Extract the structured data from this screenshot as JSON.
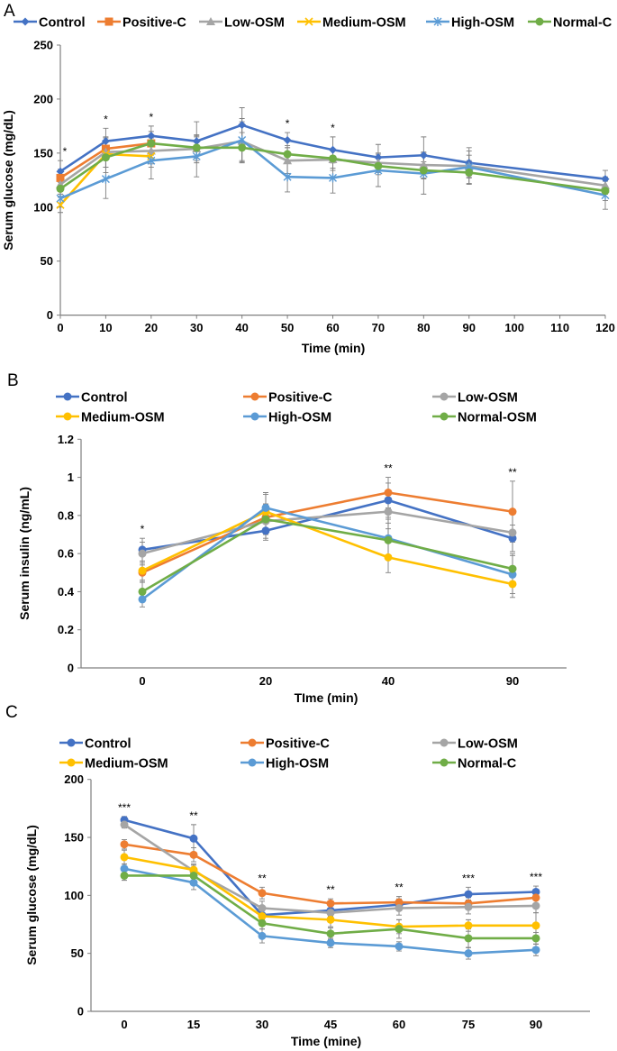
{
  "colors": {
    "Control": "#4472C4",
    "Positive-C": "#ED7D31",
    "Low-OSM": "#A5A5A5",
    "Medium-OSM": "#FFC000",
    "High-OSM": "#5B9BD5",
    "Normal-C": "#70AD47",
    "Normal-OSM": "#70AD47",
    "error": "#7F7F7F",
    "axis": "#7F7F7F"
  },
  "chart_data": [
    {
      "panel_label": "A",
      "type": "line",
      "xlabel": "Time (min)",
      "ylabel": "Serum glucose (mg/dL)",
      "xlim": [
        0,
        120
      ],
      "ylim": [
        0,
        250
      ],
      "xticks": [
        0,
        10,
        20,
        30,
        40,
        50,
        60,
        70,
        80,
        90,
        100,
        110,
        120
      ],
      "yticks": [
        0,
        50,
        100,
        150,
        200,
        250
      ],
      "grid": false,
      "legend": "top",
      "significance": [
        {
          "x": 0,
          "label": "*"
        },
        {
          "x": 10,
          "label": "*"
        },
        {
          "x": 20,
          "label": "*"
        },
        {
          "x": 50,
          "label": "*"
        },
        {
          "x": 60,
          "label": "*"
        }
      ],
      "series": [
        {
          "name": "Control",
          "marker": "diamond",
          "x": [
            0,
            10,
            20,
            30,
            40,
            50,
            60,
            70,
            80,
            90,
            120
          ],
          "values": [
            133,
            161,
            166,
            161,
            176,
            162,
            153,
            146,
            148,
            141,
            126
          ],
          "err": [
            10,
            12,
            9,
            18,
            16,
            7,
            12,
            12,
            17,
            14,
            8
          ]
        },
        {
          "name": "Positive-C",
          "marker": "square",
          "x": [
            0,
            10,
            20
          ],
          "values": [
            127,
            154,
            159
          ],
          "err": [
            8,
            10,
            8
          ]
        },
        {
          "name": "Low-OSM",
          "marker": "triangle",
          "x": [
            0,
            10,
            20,
            30,
            40,
            50,
            60,
            70,
            80,
            90,
            120
          ],
          "values": [
            121,
            151,
            152,
            154,
            161,
            143,
            144,
            141,
            139,
            138,
            120
          ],
          "err": [
            9,
            14,
            12,
            13,
            18,
            12,
            10,
            9,
            12,
            10,
            8
          ]
        },
        {
          "name": "Medium-OSM",
          "marker": "x",
          "x": [
            0,
            10,
            20
          ],
          "values": [
            102,
            149,
            147
          ],
          "err": [
            7,
            12,
            10
          ]
        },
        {
          "name": "High-OSM",
          "marker": "asterisk",
          "x": [
            0,
            10,
            20,
            30,
            40,
            50,
            60,
            70,
            80,
            90,
            120
          ],
          "values": [
            108,
            126,
            143,
            147,
            162,
            128,
            127,
            134,
            131,
            137,
            111
          ],
          "err": [
            8,
            18,
            17,
            19,
            20,
            14,
            14,
            15,
            19,
            15,
            13
          ]
        },
        {
          "name": "Normal-C",
          "marker": "circle",
          "x": [
            0,
            10,
            20,
            30,
            40,
            50,
            60,
            70,
            80,
            90,
            120
          ],
          "values": [
            117,
            146,
            159,
            155,
            155,
            149,
            145,
            138,
            134,
            132,
            115
          ],
          "err": [
            7,
            14,
            11,
            10,
            14,
            8,
            9,
            8,
            8,
            11,
            9
          ]
        }
      ]
    },
    {
      "panel_label": "B",
      "type": "line",
      "xlabel": "TIme (min)",
      "ylabel": "Serum insulin (ng/mL)",
      "categories": [
        "0",
        "20",
        "40",
        "90"
      ],
      "ylim": [
        0,
        1.2
      ],
      "yticks": [
        "0",
        "0.2",
        "0.4",
        "0.6",
        "0.8",
        "1",
        "1.2"
      ],
      "grid": false,
      "legend": "top",
      "significance": [
        "*",
        "",
        "**",
        "**"
      ],
      "series": [
        {
          "name": "Control",
          "marker": "circle",
          "values": [
            0.62,
            0.72,
            0.88,
            0.68
          ],
          "err": [
            0.06,
            0.05,
            0.09,
            0.07
          ]
        },
        {
          "name": "Positive-C",
          "marker": "circle",
          "values": [
            0.5,
            0.79,
            0.92,
            0.82
          ],
          "err": [
            0.05,
            0.07,
            0.08,
            0.16
          ]
        },
        {
          "name": "Low-OSM",
          "marker": "circle",
          "values": [
            0.6,
            0.77,
            0.82,
            0.71
          ],
          "err": [
            0.06,
            0.09,
            0.09,
            0.1
          ]
        },
        {
          "name": "Medium-OSM",
          "marker": "circle",
          "values": [
            0.51,
            0.82,
            0.58,
            0.44
          ],
          "err": [
            0.05,
            0.09,
            0.08,
            0.07
          ]
        },
        {
          "name": "High-OSM",
          "marker": "circle",
          "values": [
            0.36,
            0.84,
            0.68,
            0.49
          ],
          "err": [
            0.04,
            0.08,
            0.1,
            0.1
          ]
        },
        {
          "name": "Normal-OSM",
          "marker": "circle",
          "values": [
            0.4,
            0.78,
            0.67,
            0.52
          ],
          "err": [
            0.05,
            0.08,
            0.09,
            0.08
          ]
        }
      ]
    },
    {
      "panel_label": "C",
      "type": "line",
      "xlabel": "Time (mine)",
      "ylabel": "Serum glucose (mg/dL)",
      "categories": [
        "0",
        "15",
        "30",
        "45",
        "60",
        "75",
        "90"
      ],
      "ylim": [
        0,
        200
      ],
      "yticks": [
        "0",
        "50",
        "100",
        "150",
        "200"
      ],
      "grid": false,
      "legend": "top",
      "significance": [
        "***",
        "**",
        "**",
        "**",
        "**",
        "***",
        "***"
      ],
      "series": [
        {
          "name": "Control",
          "marker": "circle",
          "values": [
            165,
            149,
            83,
            87,
            92,
            101,
            103
          ],
          "err": [
            3,
            12,
            4,
            5,
            5,
            6,
            5
          ]
        },
        {
          "name": "Positive-C",
          "marker": "circle",
          "values": [
            144,
            135,
            102,
            93,
            94,
            93,
            98
          ],
          "err": [
            4,
            6,
            5,
            4,
            5,
            5,
            5
          ]
        },
        {
          "name": "Low-OSM",
          "marker": "circle",
          "values": [
            161,
            121,
            89,
            85,
            89,
            90,
            91
          ],
          "err": [
            3,
            5,
            6,
            6,
            6,
            6,
            6
          ]
        },
        {
          "name": "Medium-OSM",
          "marker": "circle",
          "values": [
            133,
            122,
            82,
            79,
            73,
            74,
            74
          ],
          "err": [
            6,
            5,
            6,
            6,
            6,
            5,
            11
          ]
        },
        {
          "name": "High-OSM",
          "marker": "circle",
          "values": [
            123,
            111,
            65,
            59,
            56,
            50,
            53
          ],
          "err": [
            4,
            6,
            6,
            4,
            4,
            5,
            5
          ]
        },
        {
          "name": "Normal-C",
          "marker": "circle",
          "values": [
            117,
            117,
            76,
            67,
            71,
            63,
            63
          ],
          "err": [
            4,
            5,
            5,
            5,
            8,
            8,
            5
          ]
        }
      ]
    }
  ]
}
